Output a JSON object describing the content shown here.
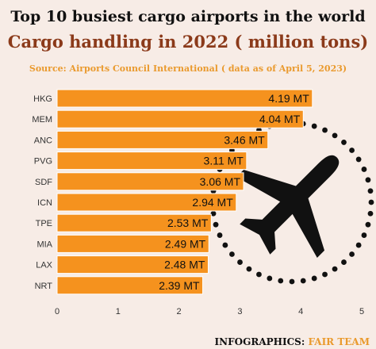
{
  "chart_data": {
    "type": "bar",
    "orientation": "horizontal",
    "title": "Top 10 busiest cargo airports in the world",
    "subtitle": "Cargo handling in 2022 ( million tons)",
    "source": "Source: Airports Council International ( data as of April 5, 2023)",
    "categories": [
      "HKG",
      "MEM",
      "ANC",
      "PVG",
      "SDF",
      "ICN",
      "TPE",
      "MIA",
      "LAX",
      "NRT"
    ],
    "values": [
      4.19,
      4.04,
      3.46,
      3.11,
      3.06,
      2.94,
      2.53,
      2.49,
      2.48,
      2.39
    ],
    "data_labels": [
      "4.19 MT",
      "4.04 MT",
      "3.46 MT",
      "3.11 MT",
      "3.06 MT",
      "2.94 MT",
      "2.53 MT",
      "2.49 MT",
      "2.48 MT",
      "2.39 MT"
    ],
    "x_ticks": [
      "0",
      "1",
      "2",
      "3",
      "4",
      "5"
    ],
    "xlim": [
      0,
      5
    ],
    "grid": false,
    "bar_color": "#f5921e",
    "background_color": "#f7ece6"
  },
  "footer": {
    "prefix": "INFOGRAPHICS: ",
    "team": "FAIR TEAM"
  },
  "decoration": {
    "icon": "airplane-icon",
    "ring": "dotted-circle"
  }
}
